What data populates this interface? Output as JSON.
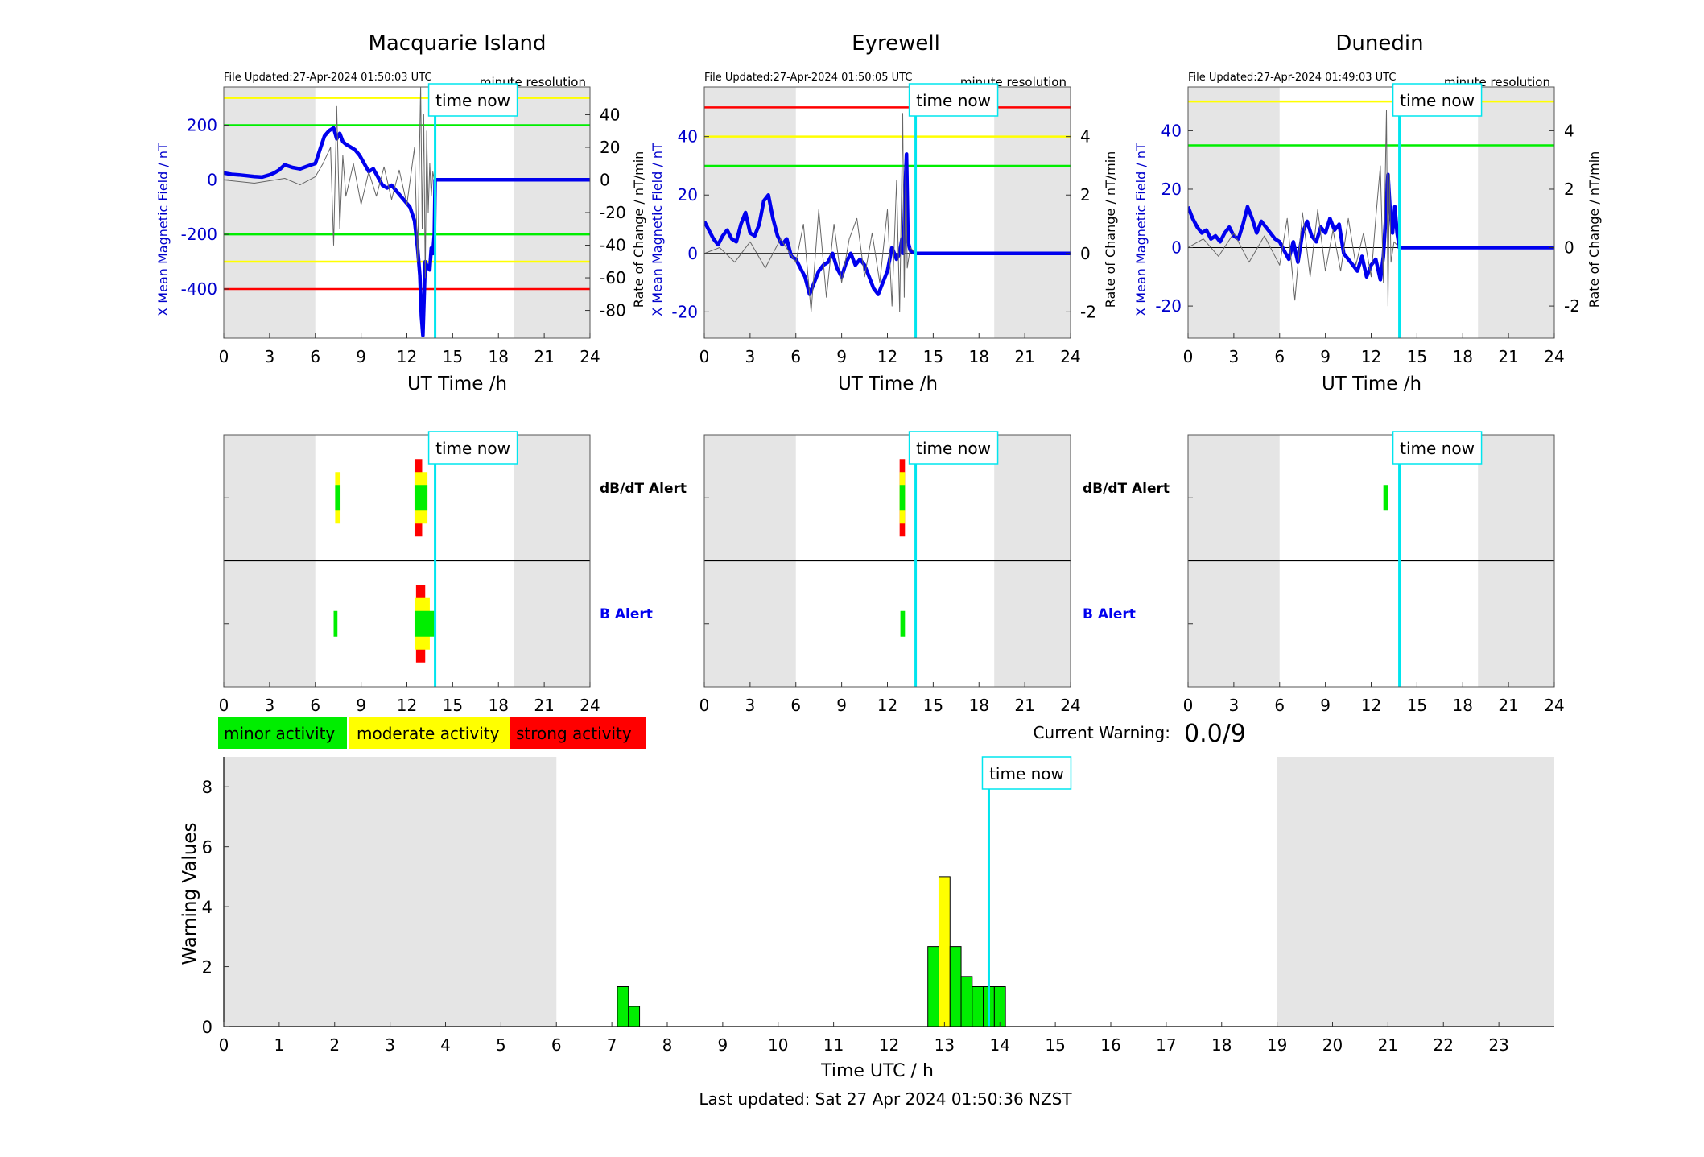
{
  "stations": [
    {
      "name": "Macquarie Island",
      "file_updated": "File Updated:27-Apr-2024 01:50:03 UTC",
      "resolution": "minute resolution",
      "ylabel_left": "X Mean Magnetic Field / nT",
      "ylabel_right": "Rate of Change / nT/min",
      "xlabel": "UT Time /h",
      "left_ticks": [
        200,
        0,
        -200,
        -400
      ],
      "right_ticks": [
        40,
        20,
        0,
        -20,
        -40,
        -60,
        -80
      ],
      "left_tick_labels": [
        "200",
        "0",
        "-200",
        "-400"
      ],
      "right_tick_labels": [
        "40",
        "20",
        "0",
        "-20",
        "-40",
        "-60",
        "-80"
      ],
      "x_ticks": [
        0,
        3,
        6,
        9,
        12,
        15,
        18,
        21,
        24
      ],
      "x_tick_labels": [
        "0",
        "3",
        "6",
        "9",
        "12",
        "15",
        "18",
        "21",
        "24"
      ],
      "time_now_label": "time now",
      "alert_time_now_label": "time now",
      "alert_x_tick_labels": [
        "0",
        "3",
        "6",
        "9",
        "12",
        "15",
        "18",
        "21",
        "24"
      ]
    },
    {
      "name": "Eyrewell",
      "file_updated": "File Updated:27-Apr-2024 01:50:05 UTC",
      "resolution": "minute resolution",
      "ylabel_left": "X Mean Magnetic Field / nT",
      "ylabel_right": "Rate of Change / nT/min",
      "xlabel": "UT Time /h",
      "left_ticks": [
        40,
        20,
        0,
        -20
      ],
      "right_ticks": [
        4,
        2,
        0,
        -2
      ],
      "left_tick_labels": [
        "40",
        "20",
        "0",
        "-20"
      ],
      "right_tick_labels": [
        "4",
        "2",
        "0",
        "-2"
      ],
      "x_ticks": [
        0,
        3,
        6,
        9,
        12,
        15,
        18,
        21,
        24
      ],
      "x_tick_labels": [
        "0",
        "3",
        "6",
        "9",
        "12",
        "15",
        "18",
        "21",
        "24"
      ],
      "time_now_label": "time now",
      "alert_time_now_label": "time now",
      "alert_x_tick_labels": [
        "0",
        "3",
        "6",
        "9",
        "12",
        "15",
        "18",
        "21",
        "24"
      ]
    },
    {
      "name": "Dunedin",
      "file_updated": "File Updated:27-Apr-2024 01:49:03 UTC",
      "resolution": "minute resolution",
      "ylabel_left": "X Mean Magnetic Field / nT",
      "ylabel_right": "Rate of Change / nT/min",
      "xlabel": "UT Time /h",
      "left_ticks": [
        40,
        20,
        0,
        -20
      ],
      "right_ticks": [
        4,
        2,
        0,
        -2
      ],
      "left_tick_labels": [
        "40",
        "20",
        "0",
        "-20"
      ],
      "right_tick_labels": [
        "4",
        "2",
        "0",
        "-2"
      ],
      "x_ticks": [
        0,
        3,
        6,
        9,
        12,
        15,
        18,
        21,
        24
      ],
      "x_tick_labels": [
        "0",
        "3",
        "6",
        "9",
        "12",
        "15",
        "18",
        "21",
        "24"
      ],
      "time_now_label": "time now",
      "alert_time_now_label": "time now",
      "alert_x_tick_labels": [
        "0",
        "3",
        "6",
        "9",
        "12",
        "15",
        "18",
        "21",
        "24"
      ]
    }
  ],
  "alert_labels": {
    "dbdt": "dB/dT Alert",
    "b": "B Alert"
  },
  "legend": {
    "minor": "minor activity",
    "moderate": "moderate activity",
    "strong": "strong activity"
  },
  "current_warning": {
    "label": "Current Warning:",
    "value": "0.0/9"
  },
  "warning_chart": {
    "ylabel": "Warning Values",
    "xlabel": "Time UTC / h",
    "time_now_label": "time now",
    "y_tick_labels": [
      "0",
      "2",
      "4",
      "6",
      "8"
    ],
    "x_tick_labels": [
      "0",
      "1",
      "2",
      "3",
      "4",
      "5",
      "6",
      "7",
      "8",
      "9",
      "10",
      "11",
      "12",
      "13",
      "14",
      "15",
      "16",
      "17",
      "18",
      "19",
      "20",
      "21",
      "22",
      "23"
    ]
  },
  "last_updated": "Last updated: Sat 27 Apr 2024 01:50:36 NZST",
  "colors": {
    "minor": "#00ee00",
    "moderate": "#ffff00",
    "strong": "#ff0000",
    "field_line": "#0000ee",
    "time_now": "#00e5ee",
    "night_shade": "#e5e5e5",
    "axis_blue": "#0000cc"
  },
  "chart_data": [
    {
      "type": "line",
      "station": "Macquarie Island",
      "xlim": [
        0,
        24
      ],
      "ylim_left": [
        -580,
        340
      ],
      "ylim_right": [
        -97,
        57
      ],
      "night_shading_h": [
        [
          0,
          6
        ],
        [
          19,
          24
        ]
      ],
      "time_now_h": 13.85,
      "threshold_lines": [
        {
          "value": 300,
          "color": "yellow"
        },
        {
          "value": 200,
          "color": "green"
        },
        {
          "value": -200,
          "color": "green"
        },
        {
          "value": -300,
          "color": "yellow"
        },
        {
          "value": -400,
          "color": "red"
        }
      ],
      "series": [
        {
          "axis": "left",
          "color": "blue",
          "x": [
            0,
            0.5,
            1,
            1.5,
            2,
            2.5,
            3,
            3.3,
            3.6,
            4,
            4.5,
            5,
            5.5,
            6,
            6.3,
            6.6,
            6.9,
            7.2,
            7.4,
            7.6,
            7.8,
            8,
            8.3,
            8.6,
            8.9,
            9.2,
            9.5,
            9.8,
            10.1,
            10.4,
            10.7,
            11,
            11.3,
            11.6,
            11.9,
            12.2,
            12.5,
            12.7,
            12.85,
            12.95,
            13.05,
            13.2,
            13.35,
            13.5,
            13.6,
            13.7,
            13.8,
            13.85,
            14,
            24
          ],
          "y": [
            25,
            20,
            18,
            15,
            12,
            10,
            18,
            25,
            35,
            55,
            45,
            40,
            50,
            60,
            110,
            160,
            180,
            190,
            150,
            170,
            140,
            130,
            120,
            110,
            90,
            60,
            30,
            40,
            10,
            -20,
            -30,
            -20,
            -40,
            -60,
            -80,
            -100,
            -150,
            -250,
            -350,
            -500,
            -570,
            -300,
            -320,
            -330,
            -250,
            -270,
            -200,
            0,
            0,
            0
          ]
        },
        {
          "axis": "right",
          "color": "black",
          "x": [
            0,
            2,
            4,
            5,
            6,
            6.5,
            7,
            7.2,
            7.4,
            7.6,
            7.8,
            8,
            8.5,
            9,
            9.5,
            10,
            10.5,
            11,
            11.5,
            12,
            12.5,
            12.7,
            12.9,
            13,
            13.1,
            13.2,
            13.3,
            13.4,
            13.5,
            13.6,
            13.7,
            13.8
          ],
          "y": [
            0,
            -2,
            1,
            -3,
            2,
            10,
            20,
            -40,
            45,
            -30,
            15,
            -10,
            10,
            -15,
            5,
            -10,
            8,
            -12,
            6,
            -15,
            20,
            -50,
            58,
            -30,
            40,
            -60,
            30,
            -20,
            10,
            -10,
            5,
            0
          ]
        }
      ]
    },
    {
      "type": "line",
      "station": "Eyrewell",
      "xlim": [
        0,
        24
      ],
      "ylim_left": [
        -29,
        57
      ],
      "ylim_right": [
        -2.9,
        5.7
      ],
      "night_shading_h": [
        [
          0,
          6
        ],
        [
          19,
          24
        ]
      ],
      "time_now_h": 13.85,
      "threshold_lines": [
        {
          "value": 50,
          "color": "red"
        },
        {
          "value": 40,
          "color": "yellow"
        },
        {
          "value": 30,
          "color": "green"
        }
      ],
      "series": [
        {
          "axis": "left",
          "color": "blue",
          "x": [
            0,
            0.3,
            0.6,
            0.9,
            1.2,
            1.5,
            1.8,
            2.1,
            2.4,
            2.7,
            3.0,
            3.3,
            3.6,
            3.9,
            4.2,
            4.5,
            4.8,
            5.1,
            5.4,
            5.7,
            6.0,
            6.3,
            6.6,
            6.9,
            7.2,
            7.5,
            7.8,
            8.1,
            8.4,
            8.7,
            9.0,
            9.3,
            9.6,
            9.9,
            10.2,
            10.5,
            10.8,
            11.1,
            11.4,
            11.7,
            12.0,
            12.3,
            12.6,
            12.8,
            12.95,
            13.05,
            13.15,
            13.25,
            13.35,
            13.5,
            13.85,
            24
          ],
          "y": [
            11,
            8,
            5,
            3,
            6,
            8,
            5,
            4,
            10,
            14,
            7,
            6,
            10,
            18,
            20,
            12,
            6,
            3,
            5,
            -1,
            -2,
            -5,
            -8,
            -14,
            -10,
            -6,
            -4,
            -3,
            0,
            -5,
            -8,
            -3,
            0,
            -4,
            -2,
            -4,
            -8,
            -12,
            -14,
            -10,
            -6,
            2,
            -2,
            0,
            5,
            0,
            20,
            34,
            4,
            1,
            0,
            0
          ]
        },
        {
          "axis": "right",
          "color": "black",
          "x": [
            0,
            1,
            2,
            3,
            4,
            5,
            6,
            6.5,
            7,
            7.5,
            8,
            8.5,
            9,
            9.5,
            10,
            10.5,
            11,
            11.5,
            12,
            12.3,
            12.6,
            12.8,
            13,
            13.1,
            13.2,
            13.3,
            13.5,
            13.85
          ],
          "y": [
            0,
            0.2,
            -0.3,
            0.4,
            -0.5,
            0.5,
            -0.3,
            1.0,
            -2.0,
            1.5,
            -1.5,
            1.0,
            -1.0,
            0.5,
            1.2,
            -0.8,
            0.7,
            -1.0,
            1.5,
            -1.8,
            2.5,
            -2.0,
            4.8,
            -1.5,
            3.0,
            -0.5,
            0.2,
            0
          ]
        }
      ]
    },
    {
      "type": "line",
      "station": "Dunedin",
      "xlim": [
        0,
        24
      ],
      "ylim_left": [
        -31,
        55
      ],
      "ylim_right": [
        -3.1,
        5.5
      ],
      "night_shading_h": [
        [
          0,
          6
        ],
        [
          19,
          24
        ]
      ],
      "time_now_h": 13.85,
      "threshold_lines": [
        {
          "value": 50,
          "color": "yellow"
        },
        {
          "value": 35,
          "color": "green"
        }
      ],
      "series": [
        {
          "axis": "left",
          "color": "blue",
          "x": [
            0,
            0.3,
            0.6,
            0.9,
            1.2,
            1.5,
            1.8,
            2.1,
            2.4,
            2.7,
            3.0,
            3.3,
            3.6,
            3.9,
            4.2,
            4.5,
            4.8,
            5.1,
            5.4,
            5.7,
            6.0,
            6.3,
            6.6,
            6.9,
            7.2,
            7.5,
            7.8,
            8.1,
            8.4,
            8.7,
            9.0,
            9.3,
            9.6,
            9.9,
            10.2,
            10.5,
            10.8,
            11.1,
            11.4,
            11.7,
            12.0,
            12.3,
            12.6,
            12.8,
            12.95,
            13.1,
            13.25,
            13.4,
            13.55,
            13.7,
            13.85,
            24
          ],
          "y": [
            14,
            10,
            7,
            5,
            6,
            3,
            4,
            2,
            5,
            7,
            4,
            3,
            8,
            14,
            10,
            5,
            9,
            7,
            5,
            3,
            2,
            -1,
            -4,
            2,
            -5,
            5,
            9,
            4,
            2,
            7,
            5,
            10,
            6,
            8,
            -2,
            -4,
            -6,
            -8,
            -3,
            -10,
            -6,
            -4,
            -11,
            -3,
            10,
            25,
            12,
            5,
            14,
            5,
            0,
            0
          ]
        },
        {
          "axis": "right",
          "color": "black",
          "x": [
            0,
            1,
            2,
            3,
            4,
            5,
            6,
            6.5,
            7,
            7.5,
            8,
            8.5,
            9,
            9.5,
            10,
            10.5,
            11,
            11.5,
            12,
            12.3,
            12.6,
            12.8,
            13,
            13.1,
            13.2,
            13.3,
            13.5,
            13.85
          ],
          "y": [
            0,
            0.3,
            -0.3,
            0.5,
            -0.5,
            0.4,
            -0.6,
            1.0,
            -1.8,
            1.2,
            -1.0,
            1.3,
            -0.8,
            0.6,
            -0.8,
            1.0,
            -0.6,
            0.5,
            -1.0,
            1.0,
            2.8,
            -1.2,
            4.7,
            -2.0,
            2.5,
            -0.5,
            0.2,
            0
          ]
        }
      ]
    },
    {
      "type": "bar",
      "name": "alerts",
      "stations": [
        "Macquarie Island",
        "Eyrewell",
        "Dunedin"
      ],
      "xlim": [
        0,
        24
      ],
      "time_now_h": 13.85,
      "alerts": [
        {
          "station": 0,
          "row": "dbdt",
          "start_h": 7.3,
          "end_h": 7.65,
          "level": "moderate"
        },
        {
          "station": 0,
          "row": "dbdt",
          "start_h": 7.3,
          "end_h": 7.65,
          "level": "minor"
        },
        {
          "station": 0,
          "row": "dbdt",
          "start_h": 12.5,
          "end_h": 13.0,
          "level": "strong"
        },
        {
          "station": 0,
          "row": "dbdt",
          "start_h": 12.5,
          "end_h": 13.35,
          "level": "moderate"
        },
        {
          "station": 0,
          "row": "dbdt",
          "start_h": 12.5,
          "end_h": 13.35,
          "level": "minor"
        },
        {
          "station": 0,
          "row": "b",
          "start_h": 7.2,
          "end_h": 7.45,
          "level": "minor"
        },
        {
          "station": 0,
          "row": "b",
          "start_h": 12.6,
          "end_h": 13.2,
          "level": "strong"
        },
        {
          "station": 0,
          "row": "b",
          "start_h": 12.5,
          "end_h": 13.5,
          "level": "moderate"
        },
        {
          "station": 0,
          "row": "b",
          "start_h": 12.5,
          "end_h": 13.9,
          "level": "minor"
        },
        {
          "station": 1,
          "row": "dbdt",
          "start_h": 12.8,
          "end_h": 13.15,
          "level": "strong"
        },
        {
          "station": 1,
          "row": "dbdt",
          "start_h": 12.8,
          "end_h": 13.15,
          "level": "moderate"
        },
        {
          "station": 1,
          "row": "dbdt",
          "start_h": 12.8,
          "end_h": 13.15,
          "level": "minor"
        },
        {
          "station": 1,
          "row": "b",
          "start_h": 12.85,
          "end_h": 13.15,
          "level": "minor"
        },
        {
          "station": 2,
          "row": "dbdt",
          "start_h": 12.8,
          "end_h": 13.1,
          "level": "minor"
        }
      ]
    },
    {
      "type": "bar",
      "name": "warning values",
      "title": "",
      "xlabel": "Time UTC / h",
      "ylabel": "Warning Values",
      "xlim": [
        0,
        24
      ],
      "ylim": [
        0,
        9
      ],
      "night_shading_h": [
        [
          0,
          6
        ],
        [
          19,
          24
        ]
      ],
      "time_now_h": 13.8,
      "bar_width_h": 0.2,
      "bars": [
        {
          "x": 7.1,
          "value": 1.33,
          "level": "minor"
        },
        {
          "x": 7.3,
          "value": 0.67,
          "level": "minor"
        },
        {
          "x": 12.7,
          "value": 2.67,
          "level": "minor"
        },
        {
          "x": 12.9,
          "value": 5.0,
          "level": "moderate"
        },
        {
          "x": 13.1,
          "value": 2.67,
          "level": "minor"
        },
        {
          "x": 13.3,
          "value": 1.67,
          "level": "minor"
        },
        {
          "x": 13.5,
          "value": 1.33,
          "level": "minor"
        },
        {
          "x": 13.7,
          "value": 1.33,
          "level": "minor"
        },
        {
          "x": 13.9,
          "value": 1.33,
          "level": "minor"
        }
      ]
    }
  ]
}
